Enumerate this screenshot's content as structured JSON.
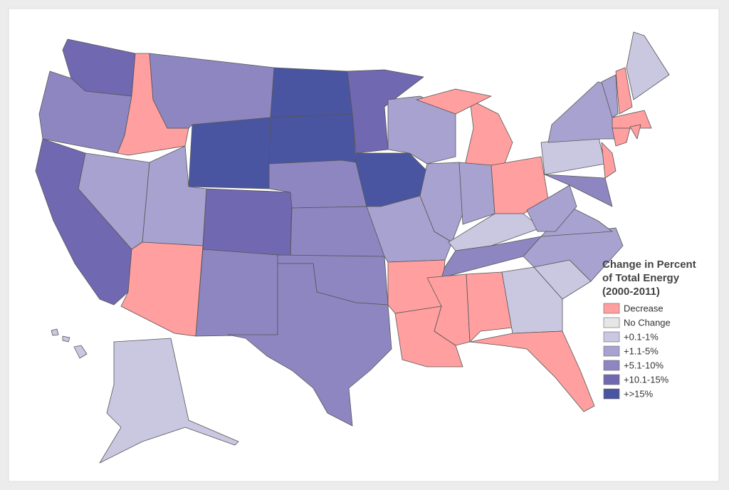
{
  "legend": {
    "title": [
      "Change in Percent",
      "of Total Energy",
      "(2000-2011)"
    ],
    "items": [
      {
        "label": "Decrease",
        "color": "#ff9f9f"
      },
      {
        "label": "No Change",
        "color": "#e6e6e6"
      },
      {
        "label": "+0.1-1%",
        "color": "#cac7e1"
      },
      {
        "label": "+1.1-5%",
        "color": "#a8a2d0"
      },
      {
        "label": "+5.1-10%",
        "color": "#8e86c1"
      },
      {
        "label": "+10.1-15%",
        "color": "#7068b1"
      },
      {
        "label": "+>15%",
        "color": "#4a55a2"
      }
    ]
  }
}
